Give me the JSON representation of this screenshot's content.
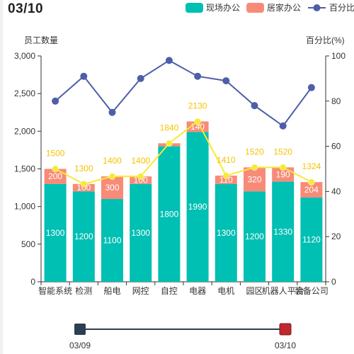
{
  "header": {
    "date": "03/10"
  },
  "legend": [
    "现场办公",
    "居家办公",
    "百分比"
  ],
  "colors": {
    "onsite": "#00bfb3",
    "remote": "#f78b78",
    "percent": "#4e5ea8",
    "total": "#f9e935",
    "total_label": "#f5c400"
  },
  "chart_data": {
    "type": "bar",
    "categories": [
      "智能系统",
      "检测",
      "船电",
      "网控",
      "自控",
      "电器",
      "电机",
      "园区",
      "机器人平台",
      "装备公司"
    ],
    "series": [
      {
        "name": "现场办公",
        "type": "bar",
        "stack": "staff",
        "values": [
          1300,
          1200,
          1100,
          1300,
          1800,
          1990,
          1300,
          1200,
          1330,
          1120
        ]
      },
      {
        "name": "居家办公",
        "type": "bar",
        "stack": "staff",
        "values": [
          200,
          100,
          300,
          100,
          40,
          140,
          110,
          320,
          190,
          204
        ]
      },
      {
        "name": "百分比",
        "type": "line",
        "axis": "right",
        "values": [
          80,
          91,
          75,
          90,
          98,
          91,
          89,
          78,
          69,
          86
        ]
      },
      {
        "type": "line",
        "axis": "left",
        "values": [
          1500,
          1300,
          1400,
          1400,
          1840,
          2130,
          1410,
          1520,
          1520,
          1324
        ]
      }
    ],
    "bar_labels_remote": [
      "200",
      "100",
      "300",
      "100",
      "",
      "140",
      "110",
      "320",
      "190",
      "204"
    ],
    "ylabel": "员工数量",
    "ylabel_right": "百分比(%)",
    "ylim": [
      0,
      3000
    ],
    "ylim_right": [
      0,
      100
    ],
    "yticks": [
      0,
      500,
      1000,
      1500,
      2000,
      2500,
      3000
    ],
    "yticks_right": [
      0,
      20,
      40,
      60,
      80,
      100
    ],
    "legend_position": "top-right"
  },
  "slider": {
    "start_label": "03/09",
    "end_label": "03/10"
  }
}
